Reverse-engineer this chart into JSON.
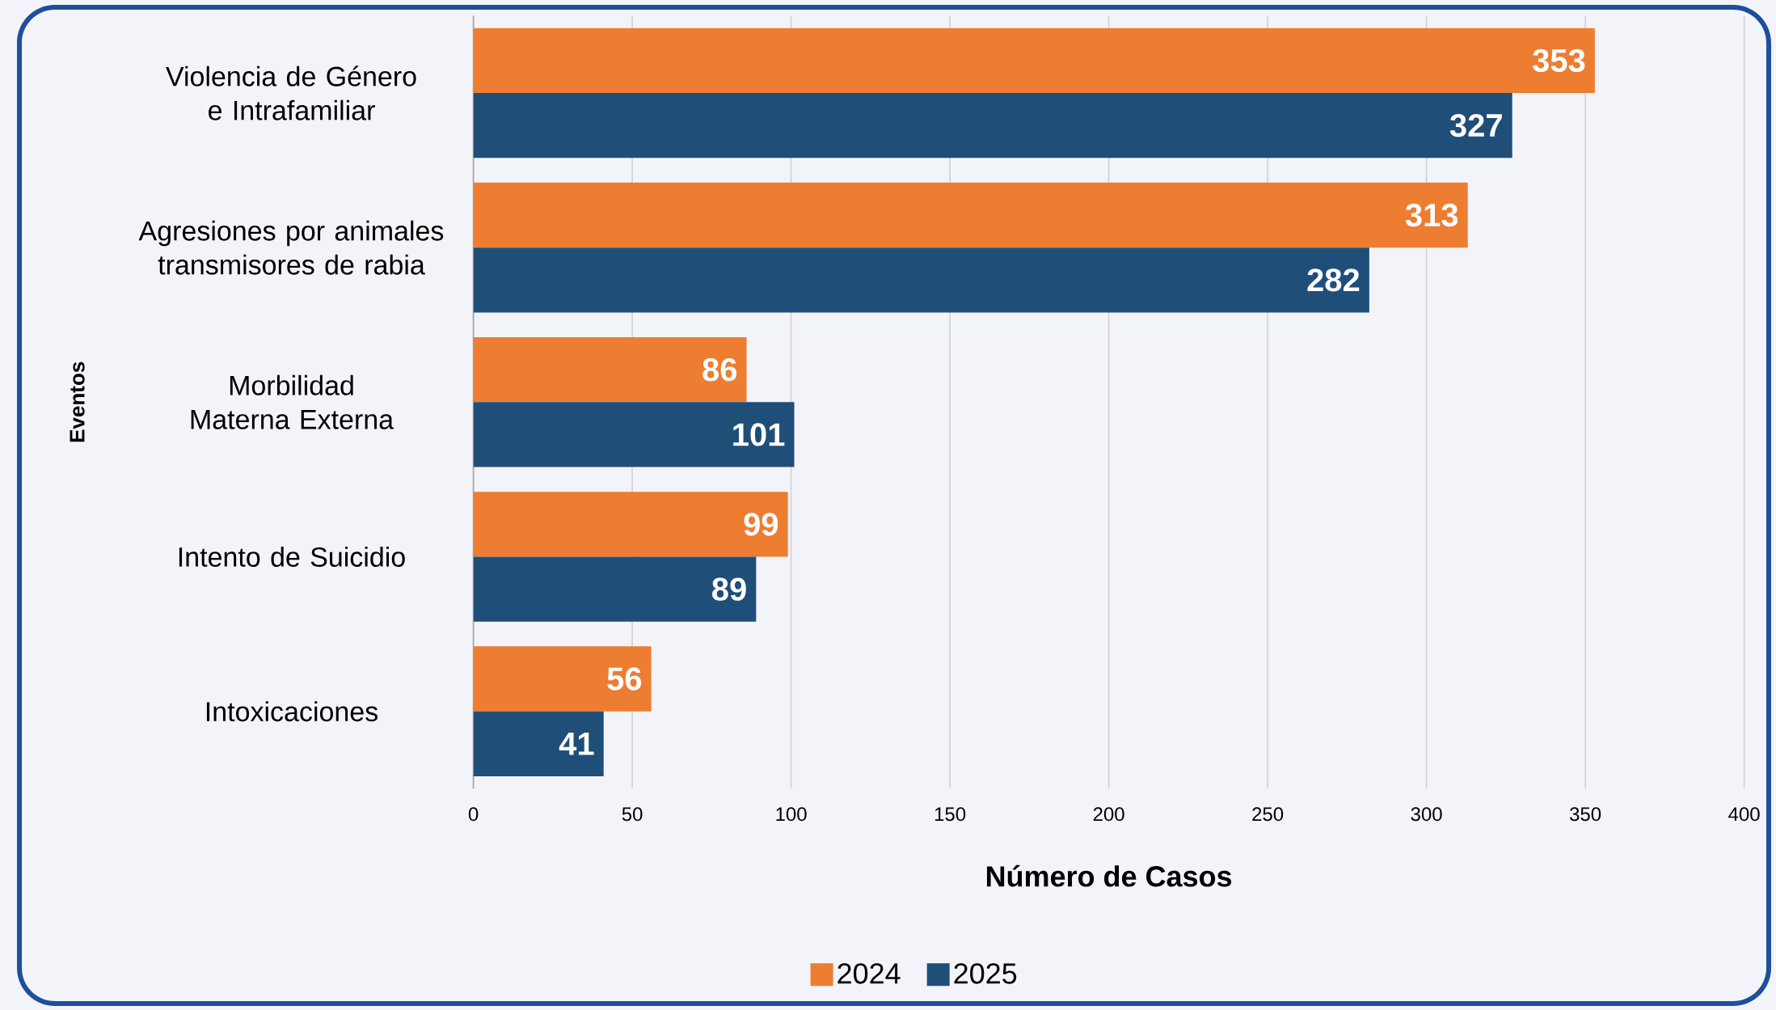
{
  "chart_data": {
    "type": "bar",
    "orientation": "horizontal",
    "xlabel": "Número de Casos",
    "ylabel": "Eventos",
    "categories": [
      "Violencia de Género e Intrafamiliar",
      "Agresiones por animales transmisores de rabia",
      "Morbilidad Materna Externa",
      "Intento de Suicidio",
      "Intoxicaciones"
    ],
    "series": [
      {
        "name": "2024",
        "color": "#ed7d31",
        "values": [
          353,
          313,
          86,
          99,
          56
        ]
      },
      {
        "name": "2025",
        "color": "#1f4e79",
        "values": [
          327,
          282,
          101,
          89,
          41
        ]
      }
    ],
    "xlim": [
      0,
      400
    ],
    "xticks": [
      0,
      50,
      100,
      150,
      200,
      250,
      300,
      350,
      400
    ],
    "grid": "x",
    "legend": "bottom",
    "data_labels": true
  }
}
